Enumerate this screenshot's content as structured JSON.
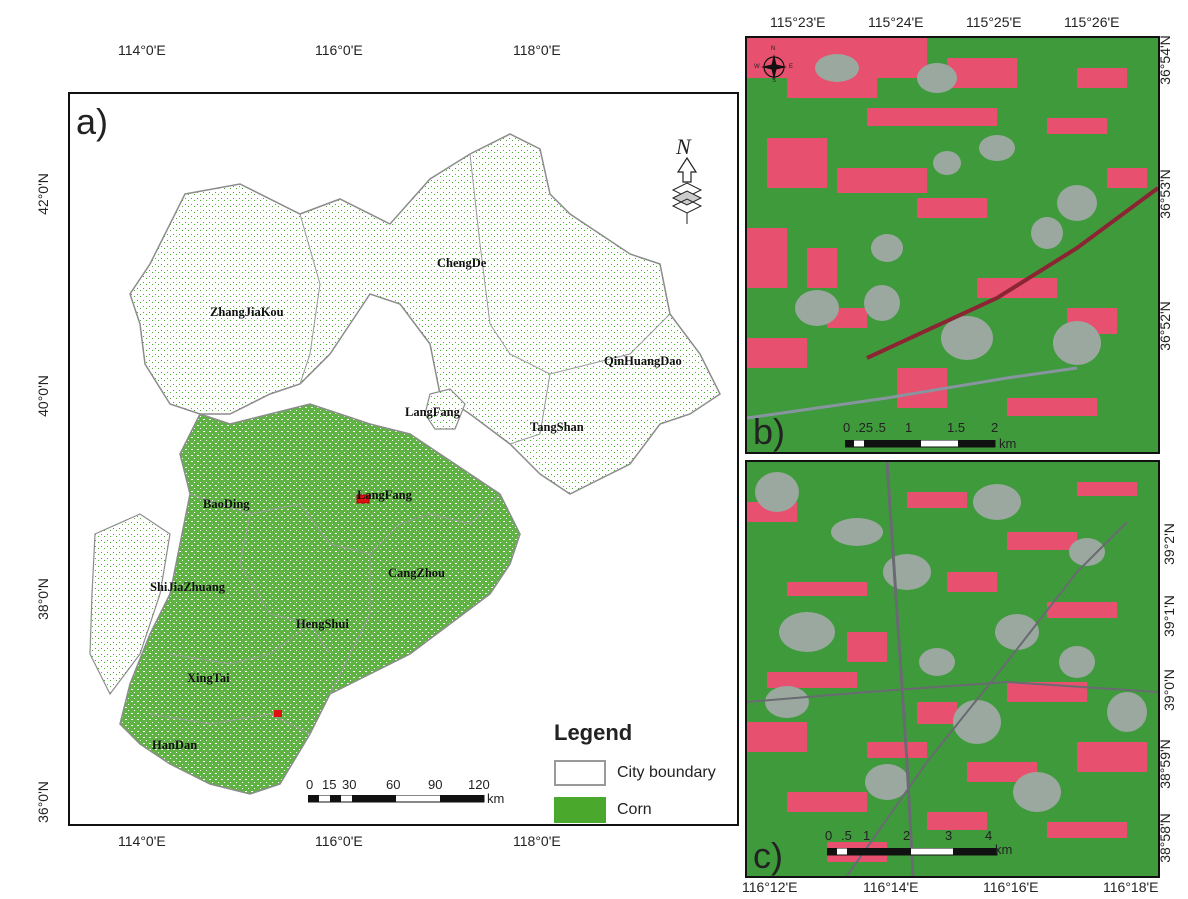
{
  "panel_a": {
    "label": "a)",
    "top_axis": [
      "114°0'E",
      "116°0'E",
      "118°0'E"
    ],
    "bottom_axis": [
      "114°0'E",
      "116°0'E",
      "118°0'E"
    ],
    "left_axis": [
      "42°0'N",
      "40°0'N",
      "38°0'N",
      "36°0'N"
    ],
    "cities": [
      "ZhangJiaKou",
      "ChengDe",
      "QinHuangDao",
      "LangFang",
      "TangShan",
      "LangFang",
      "BaoDing",
      "CangZhou",
      "ShiJiaZhuang",
      "HengShui",
      "XingTai",
      "HanDan"
    ],
    "scale": {
      "ticks": [
        "0",
        "15",
        "30",
        "60",
        "90",
        "120"
      ],
      "unit": "km"
    },
    "legend": {
      "title": "Legend",
      "items": [
        "City boundary",
        "Corn"
      ]
    },
    "north": "N"
  },
  "panel_b": {
    "label": "b)",
    "top_axis": [
      "115°23'E",
      "115°24'E",
      "115°25'E",
      "115°26'E"
    ],
    "right_axis": [
      "36°54'N",
      "36°53'N",
      "36°52'N"
    ],
    "scale": {
      "ticks": [
        "0",
        ".25",
        ".5",
        "1",
        "1.5",
        "2"
      ],
      "unit": "km"
    },
    "compass": {
      "n": "N",
      "s": "S",
      "w": "W",
      "e": "E"
    }
  },
  "panel_c": {
    "label": "c)",
    "bottom_axis": [
      "116°12'E",
      "116°14'E",
      "116°16'E",
      "116°18'E"
    ],
    "right_axis": [
      "39°2'N",
      "39°1'N",
      "39°0'N",
      "38°59'N",
      "38°58'N"
    ],
    "scale": {
      "ticks": [
        "0",
        ".5",
        "1",
        "2",
        "3",
        "4"
      ],
      "unit": "km"
    }
  },
  "colors": {
    "corn": "#4aa82c",
    "boundary": "#8c8c8c",
    "marker": "#e01010",
    "vegetation": "#3f9a3c",
    "bare_field": "#e8506f",
    "settlement": "#9aa8a0"
  }
}
